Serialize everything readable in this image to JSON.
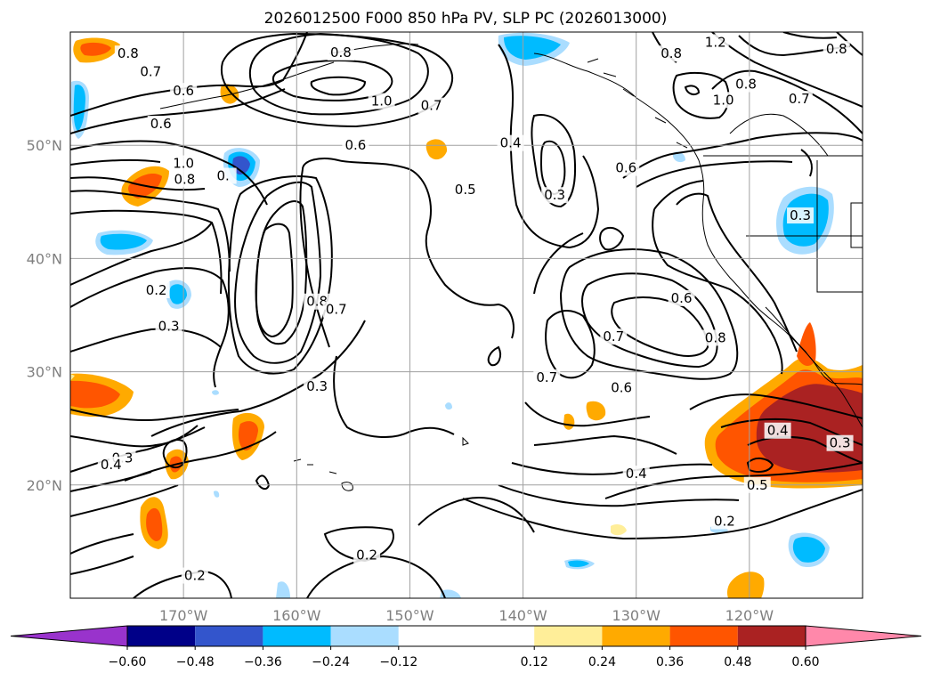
{
  "chart_data": {
    "type": "contour-map",
    "title": "2026012500 F000 850 hPa PV, SLP PC (2026013000)",
    "x_ticks": [
      "170°W",
      "160°W",
      "150°W",
      "140°W",
      "130°W",
      "120°W"
    ],
    "x_tick_values": [
      -170,
      -160,
      -150,
      -140,
      -130,
      -120
    ],
    "y_ticks": [
      "50°N",
      "40°N",
      "30°N",
      "20°N"
    ],
    "y_tick_values": [
      50,
      40,
      30,
      20
    ],
    "xlim": [
      -180,
      -110
    ],
    "ylim": [
      10,
      60
    ],
    "grid": true,
    "colorbar": {
      "orientation": "horizontal",
      "extend": "both",
      "tick_labels": [
        "−0.60",
        "−0.48",
        "−0.36",
        "−0.24",
        "−0.12",
        "0.12",
        "0.24",
        "0.36",
        "0.48",
        "0.60"
      ],
      "levels": [
        -0.6,
        -0.48,
        -0.36,
        -0.24,
        -0.12,
        0.12,
        0.24,
        0.36,
        0.48,
        0.6
      ],
      "colors": [
        "#9933cc",
        "#000088",
        "#3355cc",
        "#00bbff",
        "#aaddff",
        "#ffffff",
        "#ffee99",
        "#ffaa00",
        "#ff5500",
        "#aa2222",
        "#ff88aa"
      ]
    },
    "contour_labels": [
      {
        "text": "0.8",
        "lon": -174.9,
        "lat": 58.1
      },
      {
        "text": "0.7",
        "lon": -172.9,
        "lat": 56.5
      },
      {
        "text": "0.6",
        "lon": -170.0,
        "lat": 54.8
      },
      {
        "text": "0.6",
        "lon": -172.0,
        "lat": 51.9
      },
      {
        "text": "1.0",
        "lon": -170.0,
        "lat": 48.4
      },
      {
        "text": "0.8",
        "lon": -169.9,
        "lat": 47.0
      },
      {
        "text": "0.",
        "lon": -166.5,
        "lat": 47.3
      },
      {
        "text": "0.2",
        "lon": -172.4,
        "lat": 37.2
      },
      {
        "text": "0.3",
        "lon": -171.3,
        "lat": 34.0
      },
      {
        "text": "0.8",
        "lon": -158.2,
        "lat": 36.2
      },
      {
        "text": "0.7",
        "lon": -156.5,
        "lat": 35.5
      },
      {
        "text": "0.3",
        "lon": -158.2,
        "lat": 28.7
      },
      {
        "text": "0.3",
        "lon": -175.4,
        "lat": 22.4
      },
      {
        "text": "0.4",
        "lon": -176.4,
        "lat": 21.8
      },
      {
        "text": "0.2",
        "lon": -169.0,
        "lat": 12.0
      },
      {
        "text": "0.8",
        "lon": -156.1,
        "lat": 58.2
      },
      {
        "text": "1.0",
        "lon": -152.5,
        "lat": 53.9
      },
      {
        "text": "0.7",
        "lon": -148.1,
        "lat": 53.5
      },
      {
        "text": "0.6",
        "lon": -154.8,
        "lat": 50.0
      },
      {
        "text": "0.5",
        "lon": -145.1,
        "lat": 46.1
      },
      {
        "text": "0.4",
        "lon": -141.1,
        "lat": 50.2
      },
      {
        "text": "0.3",
        "lon": -137.2,
        "lat": 45.6
      },
      {
        "text": "0.2",
        "lon": -153.8,
        "lat": 13.8
      },
      {
        "text": "0.8",
        "lon": -126.9,
        "lat": 58.1
      },
      {
        "text": "1.2",
        "lon": -123.0,
        "lat": 59.1
      },
      {
        "text": "0.8",
        "lon": -112.3,
        "lat": 58.5
      },
      {
        "text": "0.8",
        "lon": -120.3,
        "lat": 55.4
      },
      {
        "text": "1.0",
        "lon": -122.3,
        "lat": 54.0
      },
      {
        "text": "0.7",
        "lon": -115.6,
        "lat": 54.1
      },
      {
        "text": "0.6",
        "lon": -130.9,
        "lat": 48.0
      },
      {
        "text": "0.3",
        "lon": -115.5,
        "lat": 43.8
      },
      {
        "text": "0.6",
        "lon": -126.0,
        "lat": 36.5
      },
      {
        "text": "0.8",
        "lon": -123.0,
        "lat": 33.0
      },
      {
        "text": "0.7",
        "lon": -132.0,
        "lat": 33.1
      },
      {
        "text": "0.7",
        "lon": -137.9,
        "lat": 29.5
      },
      {
        "text": "0.6",
        "lon": -131.3,
        "lat": 28.6
      },
      {
        "text": "0.4",
        "lon": -130.0,
        "lat": 21.0
      },
      {
        "text": "0.4",
        "lon": -117.5,
        "lat": 24.8
      },
      {
        "text": "0.3",
        "lon": -112.0,
        "lat": 23.7
      },
      {
        "text": "0.5",
        "lon": -119.3,
        "lat": 20.0
      },
      {
        "text": "0.2",
        "lon": -122.2,
        "lat": 16.8
      }
    ]
  }
}
